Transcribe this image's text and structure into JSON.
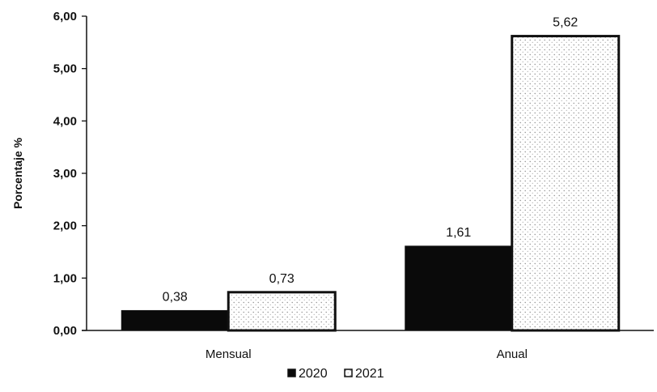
{
  "chart_data": {
    "type": "bar",
    "categories": [
      "Mensual",
      "Anual"
    ],
    "series": [
      {
        "name": "2020",
        "values": [
          0.38,
          1.61
        ],
        "labels": [
          "0,38",
          "1,61"
        ],
        "color": "#0a0a0a"
      },
      {
        "name": "2021",
        "values": [
          0.73,
          5.62
        ],
        "labels": [
          "0,73",
          "5,62"
        ],
        "color": "#ffffff",
        "pattern": "stippled"
      }
    ],
    "ylabel": "Porcentaje %",
    "ylim": [
      0,
      6
    ],
    "yticks": [
      0,
      1,
      2,
      3,
      4,
      5,
      6
    ],
    "ytick_labels": [
      "0,00",
      "1,00",
      "2,00",
      "3,00",
      "4,00",
      "5,00",
      "6,00"
    ],
    "legend_position": "bottom",
    "grid": false
  }
}
